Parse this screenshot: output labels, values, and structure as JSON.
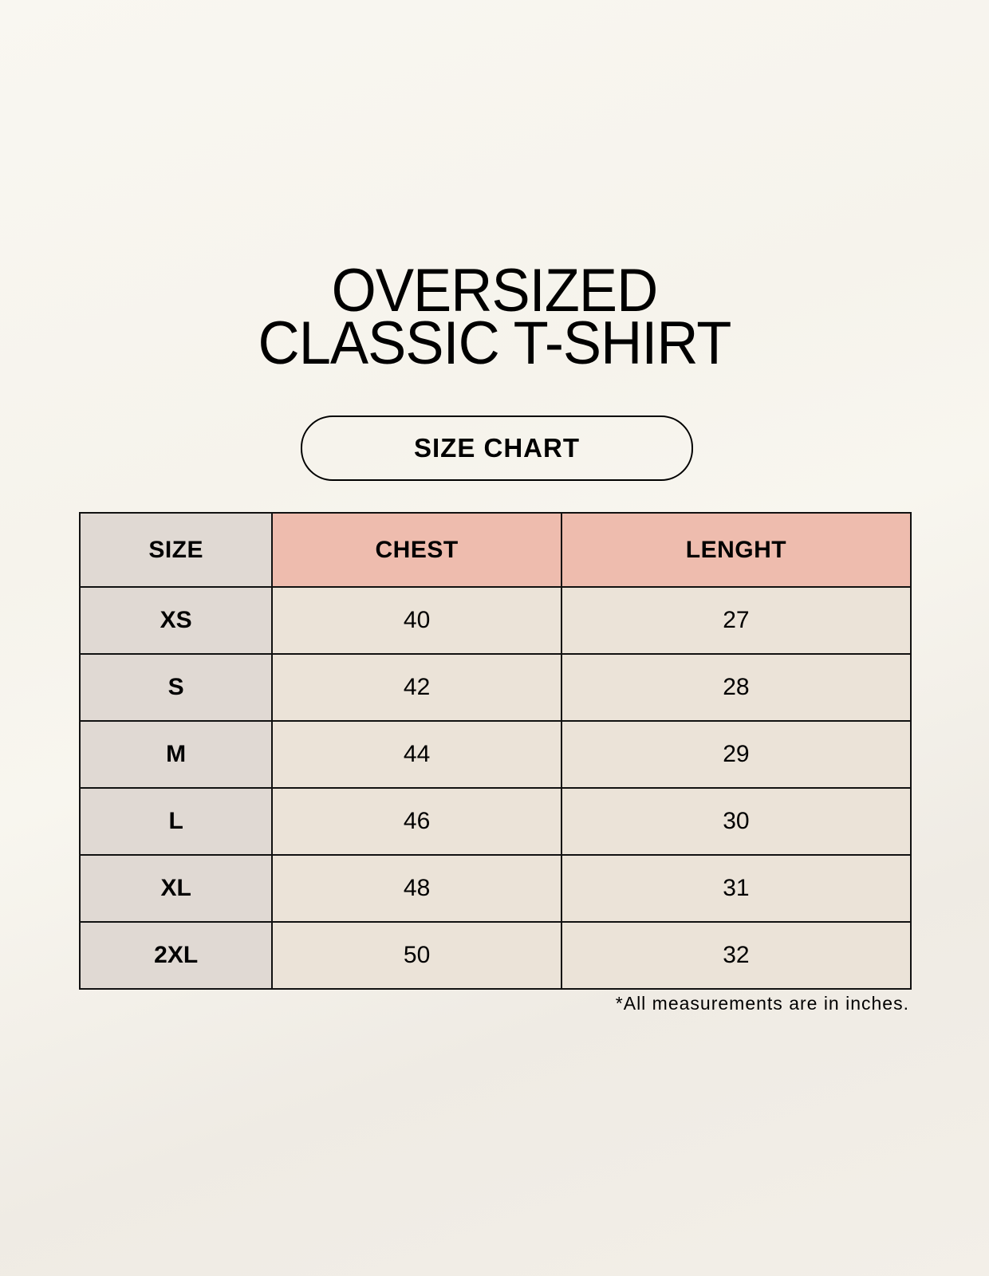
{
  "title": {
    "line1": "OVERSIZED",
    "line2": "CLASSIC T-SHIRT"
  },
  "badge": "SIZE CHART",
  "table": {
    "headers": [
      "SIZE",
      "CHEST",
      "LENGHT"
    ],
    "rows": [
      [
        "XS",
        "40",
        "27"
      ],
      [
        "S",
        "42",
        "28"
      ],
      [
        "M",
        "44",
        "29"
      ],
      [
        "L",
        "46",
        "30"
      ],
      [
        "XL",
        "48",
        "31"
      ],
      [
        "2XL",
        "50",
        "32"
      ]
    ]
  },
  "footnote": "*All measurements are in inches.",
  "colors": {
    "background": "#f8f6f0",
    "header_accent": "#eebcae",
    "size_column": "#e0d9d3",
    "cell": "#ebe3d8"
  }
}
